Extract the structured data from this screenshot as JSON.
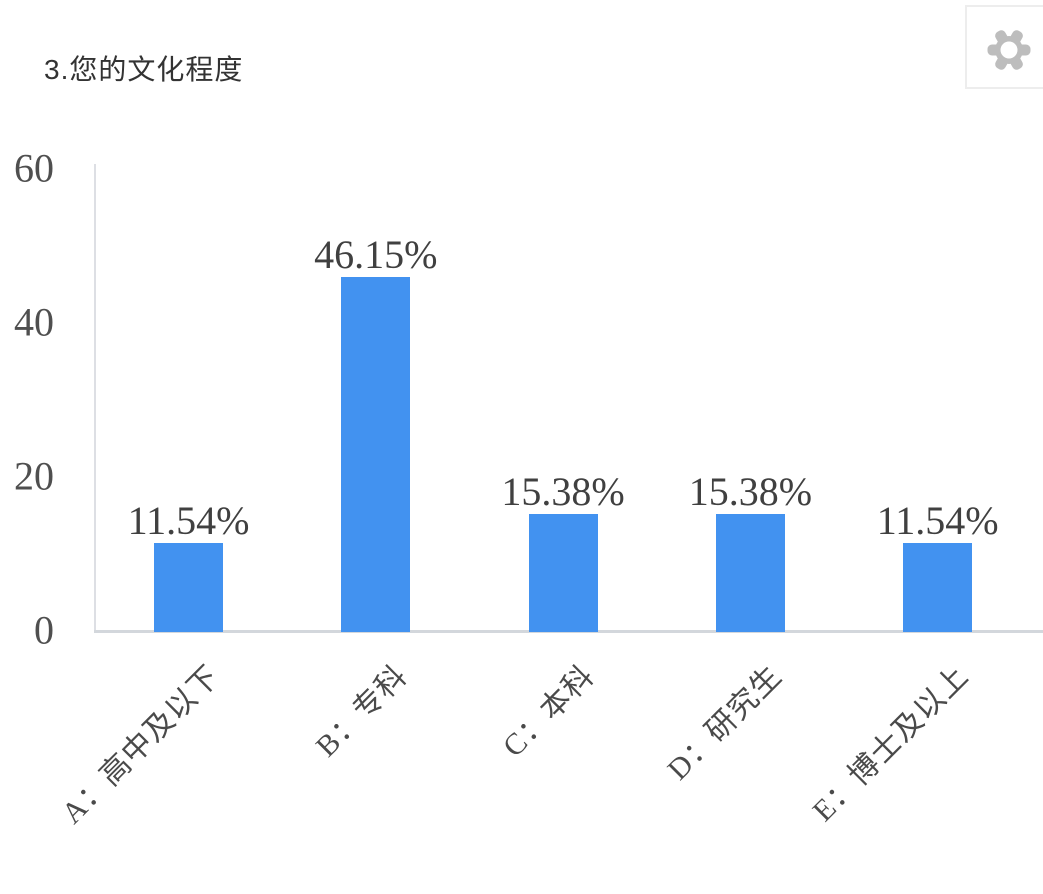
{
  "header": {
    "title": "3.您的文化程度"
  },
  "toolbar": {
    "settings_icon": "gear-icon",
    "gear_color": "#bdbdbd",
    "box_border_color": "#ededed"
  },
  "chart_data": {
    "type": "bar",
    "title": "3.您的文化程度",
    "categories": [
      "A：高中及以下",
      "B：专科",
      "C：本科",
      "D：研究生",
      "E：博士及以上"
    ],
    "values": [
      11.54,
      46.15,
      15.38,
      15.38,
      11.54
    ],
    "value_labels": [
      "11.54%",
      "46.15%",
      "15.38%",
      "15.38%",
      "11.54%"
    ],
    "y_ticks": [
      "0",
      "20",
      "40",
      "60"
    ],
    "ylim": [
      0,
      60
    ],
    "xlabel": "",
    "ylabel": "",
    "grid": false,
    "legend": null,
    "bar_color": "#4292F0",
    "axis_color": "#d6dade",
    "tick_text_color": "#4f4f4f",
    "value_label_color": "#404040",
    "x_label_rotation_deg": -45
  }
}
